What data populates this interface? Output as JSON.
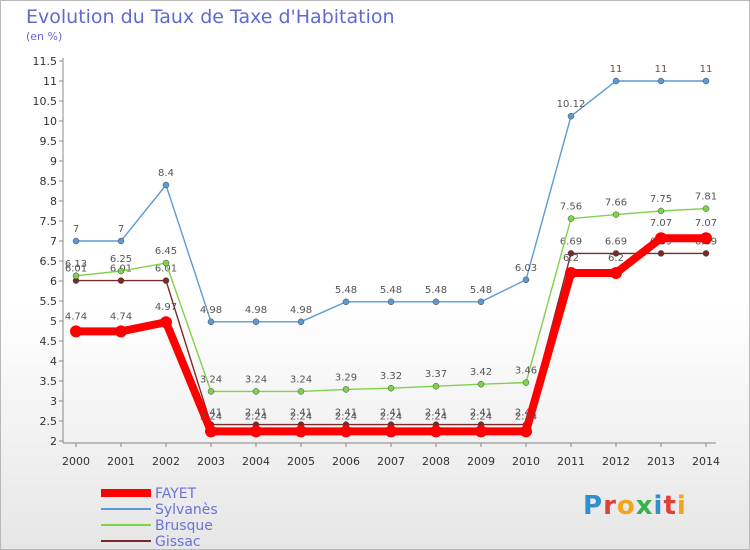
{
  "header": {
    "title": "Evolution du Taux de Taxe d'Habitation",
    "subtitle": "(en %)"
  },
  "logo_text": "Proxiti",
  "chart_data": {
    "type": "line",
    "title": "Evolution du Taux de Taxe d'Habitation",
    "subtitle": "(en %)",
    "x": [
      2000,
      2001,
      2002,
      2003,
      2004,
      2005,
      2006,
      2007,
      2008,
      2009,
      2010,
      2011,
      2012,
      2013,
      2014
    ],
    "ylim": [
      2,
      11.5
    ],
    "yticks": [
      2,
      2.5,
      3,
      3.5,
      4,
      4.5,
      5,
      5.5,
      6,
      6.5,
      7,
      7.5,
      8,
      8.5,
      9,
      9.5,
      10,
      10.5,
      11,
      11.5
    ],
    "grid": false,
    "legend_position": "bottom-left",
    "series": [
      {
        "name": "Gissac",
        "color": "#7a2a2a",
        "values": [
          6.01,
          6.01,
          6.01,
          2.41,
          2.41,
          2.41,
          2.41,
          2.41,
          2.41,
          2.41,
          2.41,
          6.69,
          6.69,
          6.69,
          6.69
        ],
        "labels": [
          "6.01",
          "6.01",
          "6.01",
          "2.41",
          "2.41",
          "2.41",
          "2.41",
          "2.41",
          "2.41",
          "2.41",
          "2.41",
          "6.69",
          "6.69",
          "6.69",
          "6.69"
        ]
      },
      {
        "name": "Brusque",
        "color": "#7fd34a",
        "values": [
          6.13,
          6.25,
          6.45,
          3.24,
          3.24,
          3.24,
          3.29,
          3.32,
          3.37,
          3.42,
          3.46,
          7.56,
          7.66,
          7.75,
          7.81
        ],
        "labels": [
          "6.13",
          "6.25",
          "6.45",
          "3.24",
          "3.24",
          "3.24",
          "3.29",
          "3.32",
          "3.37",
          "3.42",
          "3.46",
          "7.56",
          "7.66",
          "7.75",
          "7.81"
        ]
      },
      {
        "name": "Sylvanès",
        "color": "#5b9bd5",
        "values": [
          7,
          7,
          8.4,
          4.98,
          4.98,
          4.98,
          5.48,
          5.48,
          5.48,
          5.48,
          6.03,
          10.12,
          11,
          11,
          11
        ],
        "labels": [
          "7",
          "7",
          "8.4",
          "4.98",
          "4.98",
          "4.98",
          "5.48",
          "5.48",
          "5.48",
          "5.48",
          "6.03",
          "10.12",
          "11",
          "11",
          "11"
        ]
      },
      {
        "name": "FAYET",
        "color": "#ff0000",
        "values": [
          4.74,
          4.74,
          4.97,
          2.24,
          2.24,
          2.24,
          2.24,
          2.24,
          2.24,
          2.24,
          2.24,
          6.2,
          6.2,
          7.07,
          7.07
        ],
        "labels": [
          "4.74",
          "4.74",
          "4.97",
          "2.24",
          "2.24",
          "2.24",
          "2.24",
          "2.24",
          "2.24",
          "2.24",
          "2.24",
          "6.2",
          "6.2",
          "7.07",
          "7.07"
        ]
      }
    ],
    "legend": [
      "FAYET",
      "Sylvanès",
      "Brusque",
      "Gissac"
    ]
  }
}
